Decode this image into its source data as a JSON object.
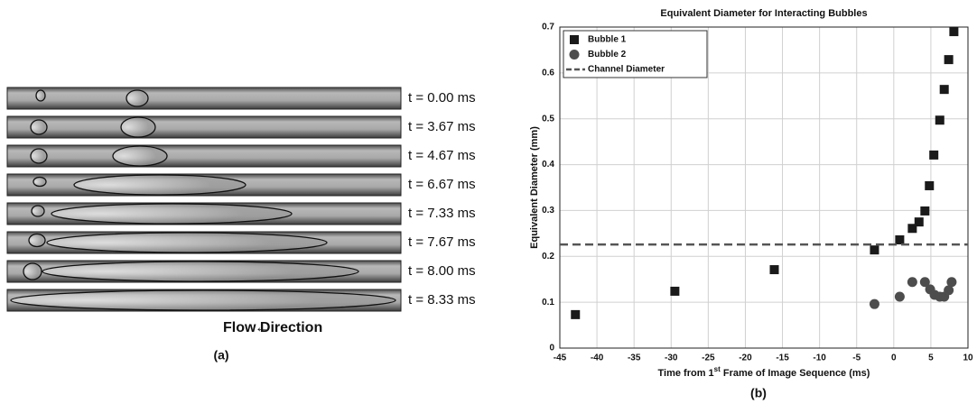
{
  "panel_a": {
    "frames": [
      "t = 0.00 ms",
      "t = 3.67 ms",
      "t = 4.67 ms",
      "t = 6.67 ms",
      "t = 7.33 ms",
      "t = 7.67 ms",
      "t = 8.00 ms",
      "t = 8.33 ms"
    ],
    "flow_label": "Flow Direction",
    "arrow": "←",
    "caption": "(a)"
  },
  "chart_data": {
    "type": "scatter",
    "title": "Equivalent Diameter for Interacting Bubbles",
    "xlabel": [
      "Time from 1",
      "st",
      " Frame of Image Sequence (ms)"
    ],
    "ylabel": "Equivalent Diameter (mm)",
    "caption": "(b)",
    "xlim": [
      -45,
      10
    ],
    "ylim": [
      0,
      0.7
    ],
    "xticks": [
      -45,
      -40,
      -35,
      -30,
      -25,
      -20,
      -15,
      -10,
      -5,
      0,
      5,
      10
    ],
    "yticks": [
      0,
      0.1,
      0.2,
      0.3,
      0.4,
      0.5,
      0.6,
      0.7
    ],
    "grid": true,
    "legend": "top-left",
    "series": [
      {
        "name": "Bubble 1",
        "color": "#1a1a1a",
        "marker": "square",
        "x": [
          -42.9,
          -29.5,
          -16.1,
          -2.6,
          0.8,
          2.5,
          3.4,
          4.2,
          4.8,
          5.4,
          6.2,
          6.8,
          7.4,
          8.1
        ],
        "values": [
          0.073,
          0.124,
          0.171,
          0.214,
          0.236,
          0.261,
          0.275,
          0.299,
          0.354,
          0.421,
          0.497,
          0.564,
          0.629,
          0.69
        ]
      },
      {
        "name": "Bubble 2",
        "color": "#4d4d4d",
        "marker": "circle",
        "x": [
          -2.6,
          0.8,
          2.5,
          4.2,
          4.9,
          5.5,
          6.2,
          6.8,
          7.4,
          7.8
        ],
        "values": [
          0.096,
          0.112,
          0.144,
          0.144,
          0.128,
          0.116,
          0.112,
          0.112,
          0.126,
          0.144
        ]
      },
      {
        "name": "Channel Diameter",
        "color": "#555555",
        "marker": "dashed-line",
        "value": 0.226
      }
    ]
  }
}
